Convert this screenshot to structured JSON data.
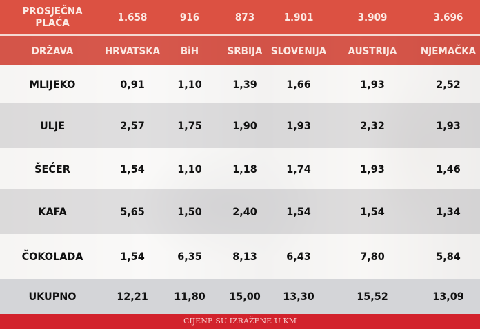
{
  "salary": {
    "label": "PROSJEČNA PLAĆA",
    "values": [
      "1.658",
      "916",
      "873",
      "1.901",
      "3.909",
      "3.696"
    ]
  },
  "columns": {
    "label": "DRŽAVA",
    "countries": [
      "HRVATSKA",
      "BiH",
      "SRBIJA",
      "SLOVENIJA",
      "AUSTRIJA",
      "NJEMAČKA"
    ]
  },
  "rows": [
    {
      "label": "MLIJEKO",
      "values": [
        "0,91",
        "1,10",
        "1,39",
        "1,66",
        "1,93",
        "2,52"
      ]
    },
    {
      "label": "ULJE",
      "values": [
        "2,57",
        "1,75",
        "1,90",
        "1,93",
        "2,32",
        "1,93"
      ]
    },
    {
      "label": "ŠEĆER",
      "values": [
        "1,54",
        "1,10",
        "1,18",
        "1,74",
        "1,93",
        "1,46"
      ]
    },
    {
      "label": "KAFA",
      "values": [
        "5,65",
        "1,50",
        "2,40",
        "1,54",
        "1,54",
        "1,34"
      ]
    },
    {
      "label": "ČOKOLADA",
      "values": [
        "1,54",
        "6,35",
        "8,13",
        "6,43",
        "7,80",
        "5,84"
      ]
    }
  ],
  "total": {
    "label": "UKUPNO",
    "values": [
      "12,21",
      "11,80",
      "15,00",
      "13,30",
      "15,52",
      "13,09"
    ]
  },
  "footer": "CIJENE SU IZRAŽENE U KM",
  "colors": {
    "header": "#dc5142",
    "footer": "#d2222c"
  }
}
